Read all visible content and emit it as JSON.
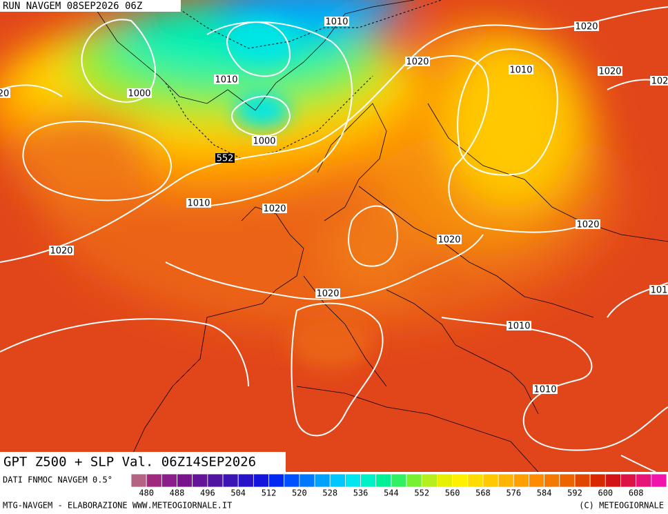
{
  "header": {
    "run": "RUN NAVGEM 08SEP2026 06Z"
  },
  "map": {
    "contour_labels": [
      "1010",
      "1020",
      "1020",
      "1010",
      "1020",
      "102",
      "20",
      "1010",
      "1000",
      "1000",
      "552",
      "1010",
      "1020",
      "1020",
      "1020",
      "1020",
      "101",
      "1020",
      "1010",
      "1010"
    ]
  },
  "footer": {
    "title": "GPT Z500 + SLP Val. 06Z14SEP2026",
    "source": "DATI FNMOC NAVGEM 0.5°",
    "credit": "MTG-NAVGEM - ELABORAZIONE WWW.METEOGIORNALE.IT",
    "copyright": "(C) METEOGIORNALE"
  },
  "colorbar": {
    "ticks": [
      480,
      488,
      496,
      504,
      512,
      520,
      528,
      536,
      544,
      552,
      560,
      568,
      576,
      584,
      592,
      600,
      608
    ],
    "colors": [
      "#b46482",
      "#a0287f",
      "#8c1e8c",
      "#78148c",
      "#641496",
      "#5014a0",
      "#3c14b4",
      "#2814c8",
      "#1414dc",
      "#0028f0",
      "#0050ff",
      "#0078ff",
      "#00a0ff",
      "#00c8ff",
      "#00e6f0",
      "#00f0c8",
      "#00f096",
      "#32f064",
      "#78f032",
      "#b4f01e",
      "#e6f000",
      "#fff000",
      "#ffdc00",
      "#ffc800",
      "#ffb400",
      "#ffa000",
      "#ff8c00",
      "#f57800",
      "#eb6400",
      "#e14600",
      "#d72800",
      "#d21414",
      "#dc1446",
      "#e61478",
      "#f014aa"
    ]
  }
}
